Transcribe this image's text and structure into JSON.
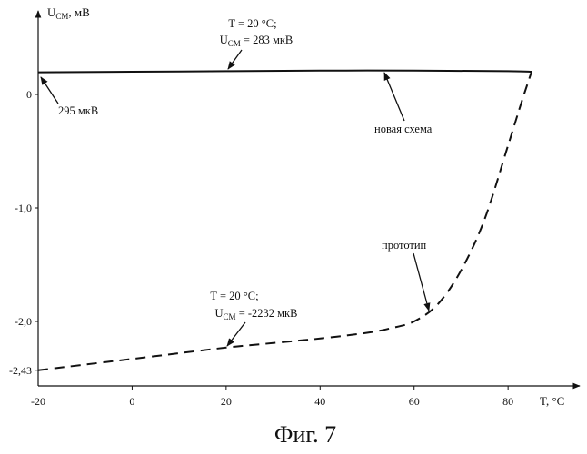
{
  "chart_data": {
    "type": "line",
    "ylabel_main": "U",
    "ylabel_sub": "СМ",
    "ylabel_unit": ", мВ",
    "xlabel": "T, °C",
    "xlim": [
      -20,
      87
    ],
    "ylim": [
      -2.43,
      0.5
    ],
    "x_ticks": [
      {
        "value": -20,
        "label": "-20"
      },
      {
        "value": 0,
        "label": "0"
      },
      {
        "value": 20,
        "label": "20"
      },
      {
        "value": 40,
        "label": "40"
      },
      {
        "value": 60,
        "label": "60"
      },
      {
        "value": 80,
        "label": "80"
      }
    ],
    "y_ticks": [
      {
        "value": 0,
        "label": "0"
      },
      {
        "value": -1.0,
        "label": "-1,0"
      },
      {
        "value": -2.0,
        "label": "-2,0"
      },
      {
        "value": -2.43,
        "label": "-2,43"
      }
    ],
    "series": [
      {
        "name": "новая схема",
        "style": "solid",
        "x": [
          -20,
          0,
          20,
          40,
          60,
          80,
          85
        ],
        "y": [
          0.195,
          0.2,
          0.205,
          0.21,
          0.21,
          0.205,
          0.2
        ]
      },
      {
        "name": "прототип",
        "style": "dashed",
        "x": [
          -20,
          -10,
          0,
          10,
          20,
          30,
          40,
          50,
          55,
          60,
          65,
          70,
          75,
          80,
          83,
          85
        ],
        "y": [
          -2.43,
          -2.38,
          -2.33,
          -2.28,
          -2.23,
          -2.19,
          -2.15,
          -2.1,
          -2.06,
          -2.0,
          -1.85,
          -1.55,
          -1.1,
          -0.45,
          -0.05,
          0.2
        ]
      }
    ],
    "annotations": [
      {
        "id": "new-t20-line1",
        "text": "T = 20 °C;"
      },
      {
        "id": "new-t20-line2",
        "main": "U",
        "sub": "СМ",
        "rest": " = 283 мкВ"
      },
      {
        "id": "new-start",
        "text": "295 мкВ"
      },
      {
        "id": "new-name",
        "text": "новая схема"
      },
      {
        "id": "proto-name",
        "text": "прототип"
      },
      {
        "id": "proto-t20-line1",
        "text": "T = 20 °C;"
      },
      {
        "id": "proto-t20-line2",
        "main": "U",
        "sub": "СМ",
        "rest": " = -2232 мкВ"
      }
    ],
    "caption": "Фиг. 7"
  }
}
